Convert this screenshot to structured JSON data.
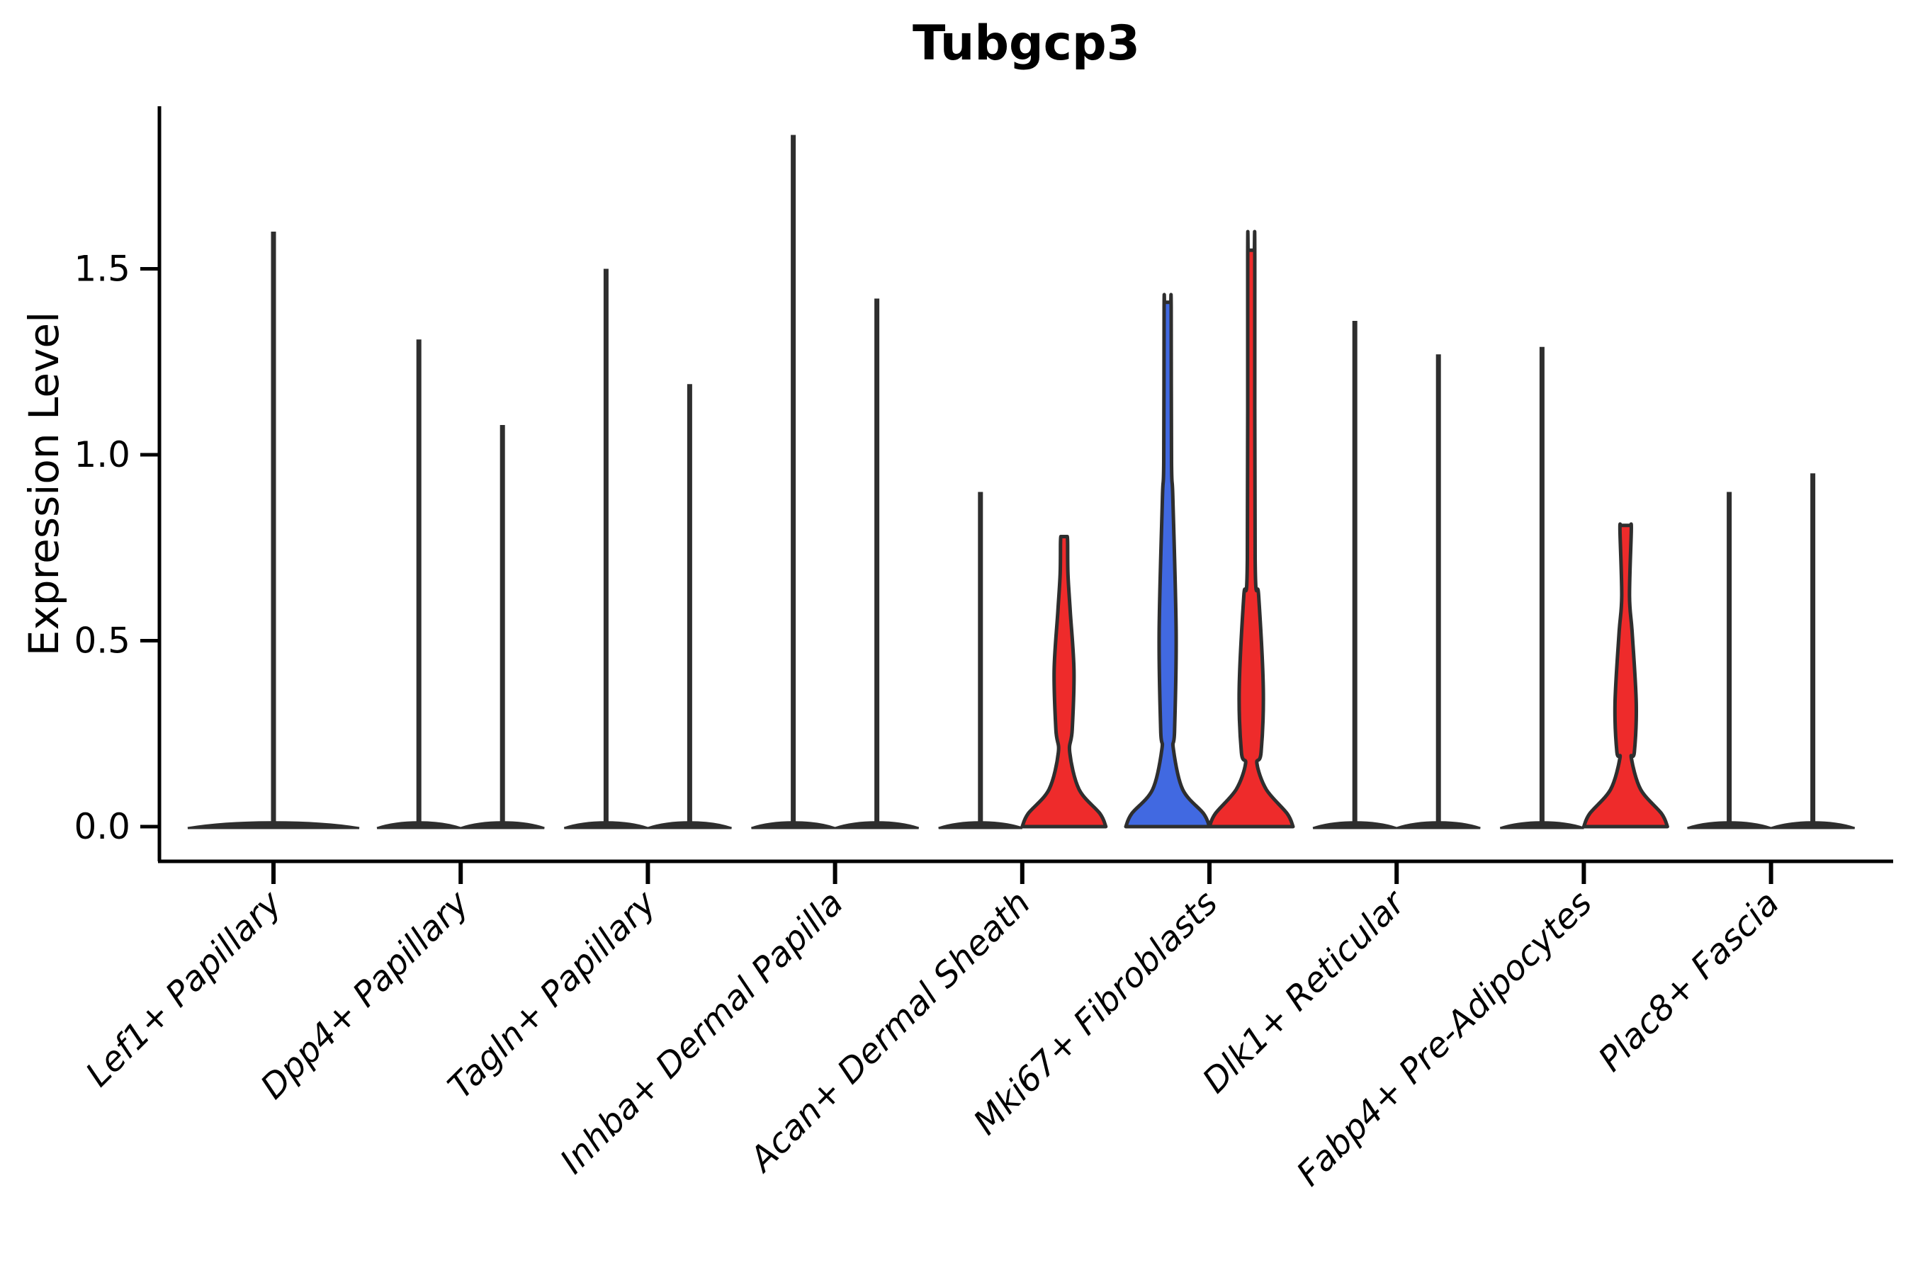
{
  "title": "Tubgcp3",
  "ylabel": "Expression Level",
  "colors": {
    "red": "#ee2b2b",
    "blue": "#4169e1",
    "violin_outline": "#2e2e2e",
    "axis": "#000000",
    "background": "#ffffff"
  },
  "chart_data": {
    "type": "violin",
    "title": "Tubgcp3",
    "xlabel": "",
    "ylabel": "Expression Level",
    "yticks": [
      "0.0",
      "0.5",
      "1.0",
      "1.5"
    ],
    "ytick_values": [
      0.0,
      0.5,
      1.0,
      1.5
    ],
    "ylim": [
      -0.09,
      1.94
    ],
    "grid": false,
    "legend": "none",
    "categories": [
      "Lef1+ Papillary",
      "Dpp4+ Papillary",
      "Tagln+ Papillary",
      "Inhba+ Dermal Papilla",
      "Acan+ Dermal Sheath",
      "Mki67+ Fibroblasts",
      "Dlk1+ Reticular",
      "Fabp4+ Pre-Adipocytes",
      "Plac8+ Fascia"
    ],
    "violins": [
      {
        "category_index": 0,
        "group": "single",
        "style": "spike",
        "fill": "none",
        "max": 1.6
      },
      {
        "category_index": 1,
        "group": "left",
        "style": "spike",
        "fill": "none",
        "max": 1.31
      },
      {
        "category_index": 1,
        "group": "right",
        "style": "spike",
        "fill": "none",
        "max": 1.08
      },
      {
        "category_index": 2,
        "group": "left",
        "style": "spike",
        "fill": "none",
        "max": 1.5
      },
      {
        "category_index": 2,
        "group": "right",
        "style": "spike",
        "fill": "none",
        "max": 1.19
      },
      {
        "category_index": 3,
        "group": "left",
        "style": "spike",
        "fill": "none",
        "max": 1.86
      },
      {
        "category_index": 3,
        "group": "right",
        "style": "spike",
        "fill": "none",
        "max": 1.42
      },
      {
        "category_index": 4,
        "group": "left",
        "style": "spike",
        "fill": "none",
        "max": 0.9
      },
      {
        "category_index": 4,
        "group": "right",
        "style": "violin",
        "fill": "red",
        "max": 0.78,
        "neck": 0.2,
        "bulge": {
          "bottom": 0.26,
          "center": 0.42,
          "top": 0.58,
          "halfwidth": 14
        },
        "top_halfwidth": 5
      },
      {
        "category_index": 5,
        "group": "left",
        "style": "violin",
        "fill": "blue",
        "max": 1.41,
        "neck": 0.21,
        "bulge": {
          "bottom": 0.26,
          "center": 0.52,
          "top": 0.88,
          "halfwidth": 12
        },
        "top_halfwidth": 5
      },
      {
        "category_index": 5,
        "group": "right",
        "style": "violin",
        "fill": "red",
        "max": 1.55,
        "neck": 0.17,
        "bulge": {
          "bottom": 0.2,
          "center": 0.37,
          "top": 0.62,
          "halfwidth": 17
        },
        "top_halfwidth": 5
      },
      {
        "category_index": 6,
        "group": "left",
        "style": "spike",
        "fill": "none",
        "max": 1.36
      },
      {
        "category_index": 6,
        "group": "right",
        "style": "spike",
        "fill": "none",
        "max": 1.27
      },
      {
        "category_index": 7,
        "group": "left",
        "style": "spike",
        "fill": "none",
        "max": 1.29
      },
      {
        "category_index": 7,
        "group": "right",
        "style": "violin",
        "fill": "red",
        "max": 0.81,
        "neck": 0.185,
        "bulge": {
          "bottom": 0.2,
          "center": 0.33,
          "top": 0.52,
          "halfwidth": 15
        },
        "top_halfwidth": 8
      },
      {
        "category_index": 8,
        "group": "left",
        "style": "spike",
        "fill": "none",
        "max": 0.9
      },
      {
        "category_index": 8,
        "group": "right",
        "style": "spike",
        "fill": "none",
        "max": 0.95
      }
    ]
  }
}
